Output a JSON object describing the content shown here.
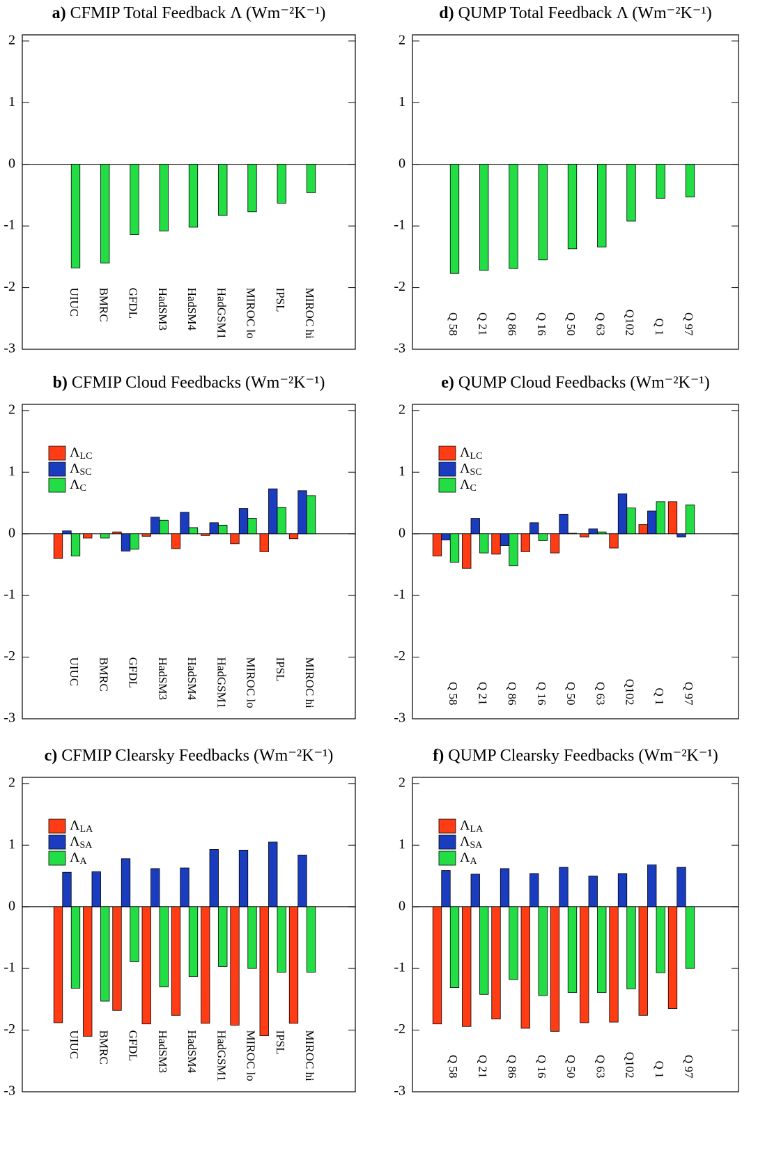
{
  "chart_data": [
    {
      "type": "bar",
      "panel_label": "a)",
      "title": "CFMIP Total Feedback Λ (Wm⁻²K⁻¹)",
      "categories": [
        "UIUC",
        "BMRC",
        "GFDL",
        "HadSM3",
        "HadSM4",
        "HadGSM1",
        "MIROC lo",
        "IPSL",
        "MIROC hi"
      ],
      "values": [
        -1.68,
        -1.6,
        -1.14,
        -1.08,
        -1.02,
        -0.83,
        -0.77,
        -0.63,
        -0.46
      ],
      "color": "#22dd44",
      "ylim": [
        -3,
        2.1
      ],
      "yticks": [
        -3,
        -2,
        -1,
        0,
        1,
        2
      ]
    },
    {
      "type": "bar",
      "panel_label": "b)",
      "title": "CFMIP Cloud Feedbacks (Wm⁻²K⁻¹)",
      "categories": [
        "UIUC",
        "BMRC",
        "GFDL",
        "HadSM3",
        "HadSM4",
        "HadGSM1",
        "MIROC lo",
        "IPSL",
        "MIROC hi"
      ],
      "series": [
        {
          "name": "ΛLC",
          "color": "#ff3c14",
          "values": [
            -0.4,
            -0.07,
            0.03,
            -0.04,
            -0.24,
            -0.03,
            -0.16,
            -0.29,
            -0.08
          ]
        },
        {
          "name": "ΛSC",
          "color": "#1a3cbe",
          "values": [
            0.05,
            0.0,
            -0.28,
            0.27,
            0.35,
            0.18,
            0.41,
            0.73,
            0.7
          ]
        },
        {
          "name": "ΛC",
          "color": "#22dd44",
          "values": [
            -0.36,
            -0.07,
            -0.25,
            0.22,
            0.1,
            0.14,
            0.25,
            0.43,
            0.62
          ]
        }
      ],
      "legend": "upper left",
      "ylim": [
        -3,
        2.1
      ],
      "yticks": [
        -3,
        -2,
        -1,
        0,
        1,
        2
      ]
    },
    {
      "type": "bar",
      "panel_label": "c)",
      "title": "CFMIP Clearsky Feedbacks (Wm⁻²K⁻¹)",
      "categories": [
        "UIUC",
        "BMRC",
        "GFDL",
        "HadSM3",
        "HadSM4",
        "HadGSM1",
        "MIROC lo",
        "IPSL",
        "MIROC hi"
      ],
      "series": [
        {
          "name": "ΛLA",
          "color": "#ff3c14",
          "values": [
            -1.88,
            -2.1,
            -1.68,
            -1.9,
            -1.76,
            -1.89,
            -1.92,
            -2.09,
            -1.89
          ]
        },
        {
          "name": "ΛSA",
          "color": "#1a3cbe",
          "values": [
            0.56,
            0.57,
            0.78,
            0.62,
            0.63,
            0.93,
            0.92,
            1.05,
            0.84
          ]
        },
        {
          "name": "ΛA",
          "color": "#22dd44",
          "values": [
            -1.32,
            -1.53,
            -0.89,
            -1.3,
            -1.13,
            -0.97,
            -1.0,
            -1.06,
            -1.06
          ]
        }
      ],
      "legend": "upper left",
      "ylim": [
        -3,
        2.1
      ],
      "yticks": [
        -3,
        -2,
        -1,
        0,
        1,
        2
      ]
    },
    {
      "type": "bar",
      "panel_label": "d)",
      "title": "QUMP Total Feedback Λ (Wm⁻²K⁻¹)",
      "categories": [
        "Q 58",
        "Q 21",
        "Q 86",
        "Q 16",
        "Q 50",
        "Q 63",
        "Q102",
        "Q 1",
        "Q 97"
      ],
      "values": [
        -1.77,
        -1.72,
        -1.69,
        -1.55,
        -1.37,
        -1.34,
        -0.92,
        -0.55,
        -0.53
      ],
      "color": "#22dd44",
      "ylim": [
        -3,
        2.1
      ],
      "yticks": [
        -3,
        -2,
        -1,
        0,
        1,
        2
      ]
    },
    {
      "type": "bar",
      "panel_label": "e)",
      "title": "QUMP Cloud Feedbacks (Wm⁻²K⁻¹)",
      "categories": [
        "Q 58",
        "Q 21",
        "Q 86",
        "Q 16",
        "Q 50",
        "Q 63",
        "Q102",
        "Q 1",
        "Q 97"
      ],
      "series": [
        {
          "name": "ΛLC",
          "color": "#ff3c14",
          "values": [
            -0.36,
            -0.56,
            -0.33,
            -0.29,
            -0.31,
            -0.05,
            -0.23,
            0.15,
            0.52
          ]
        },
        {
          "name": "ΛSC",
          "color": "#1a3cbe",
          "values": [
            -0.1,
            0.25,
            -0.19,
            0.18,
            0.32,
            0.08,
            0.65,
            0.37,
            -0.05
          ]
        },
        {
          "name": "ΛC",
          "color": "#22dd44",
          "values": [
            -0.46,
            -0.31,
            -0.52,
            -0.11,
            0.01,
            0.03,
            0.42,
            0.52,
            0.47
          ]
        }
      ],
      "legend": "upper left",
      "ylim": [
        -3,
        2.1
      ],
      "yticks": [
        -3,
        -2,
        -1,
        0,
        1,
        2
      ]
    },
    {
      "type": "bar",
      "panel_label": "f)",
      "title": "QUMP Clearsky Feedbacks (Wm⁻²K⁻¹)",
      "categories": [
        "Q 58",
        "Q 21",
        "Q 86",
        "Q 16",
        "Q 50",
        "Q 63",
        "Q102",
        "Q 1",
        "Q 97"
      ],
      "series": [
        {
          "name": "ΛLA",
          "color": "#ff3c14",
          "values": [
            -1.9,
            -1.94,
            -1.82,
            -1.97,
            -2.02,
            -1.88,
            -1.87,
            -1.76,
            -1.65
          ]
        },
        {
          "name": "ΛSA",
          "color": "#1a3cbe",
          "values": [
            0.59,
            0.53,
            0.62,
            0.54,
            0.64,
            0.5,
            0.54,
            0.68,
            0.64
          ]
        },
        {
          "name": "ΛA",
          "color": "#22dd44",
          "values": [
            -1.31,
            -1.42,
            -1.18,
            -1.44,
            -1.39,
            -1.39,
            -1.33,
            -1.07,
            -1.0
          ]
        }
      ],
      "legend": "upper left",
      "ylim": [
        -3,
        2.1
      ],
      "yticks": [
        -3,
        -2,
        -1,
        0,
        1,
        2
      ]
    }
  ]
}
